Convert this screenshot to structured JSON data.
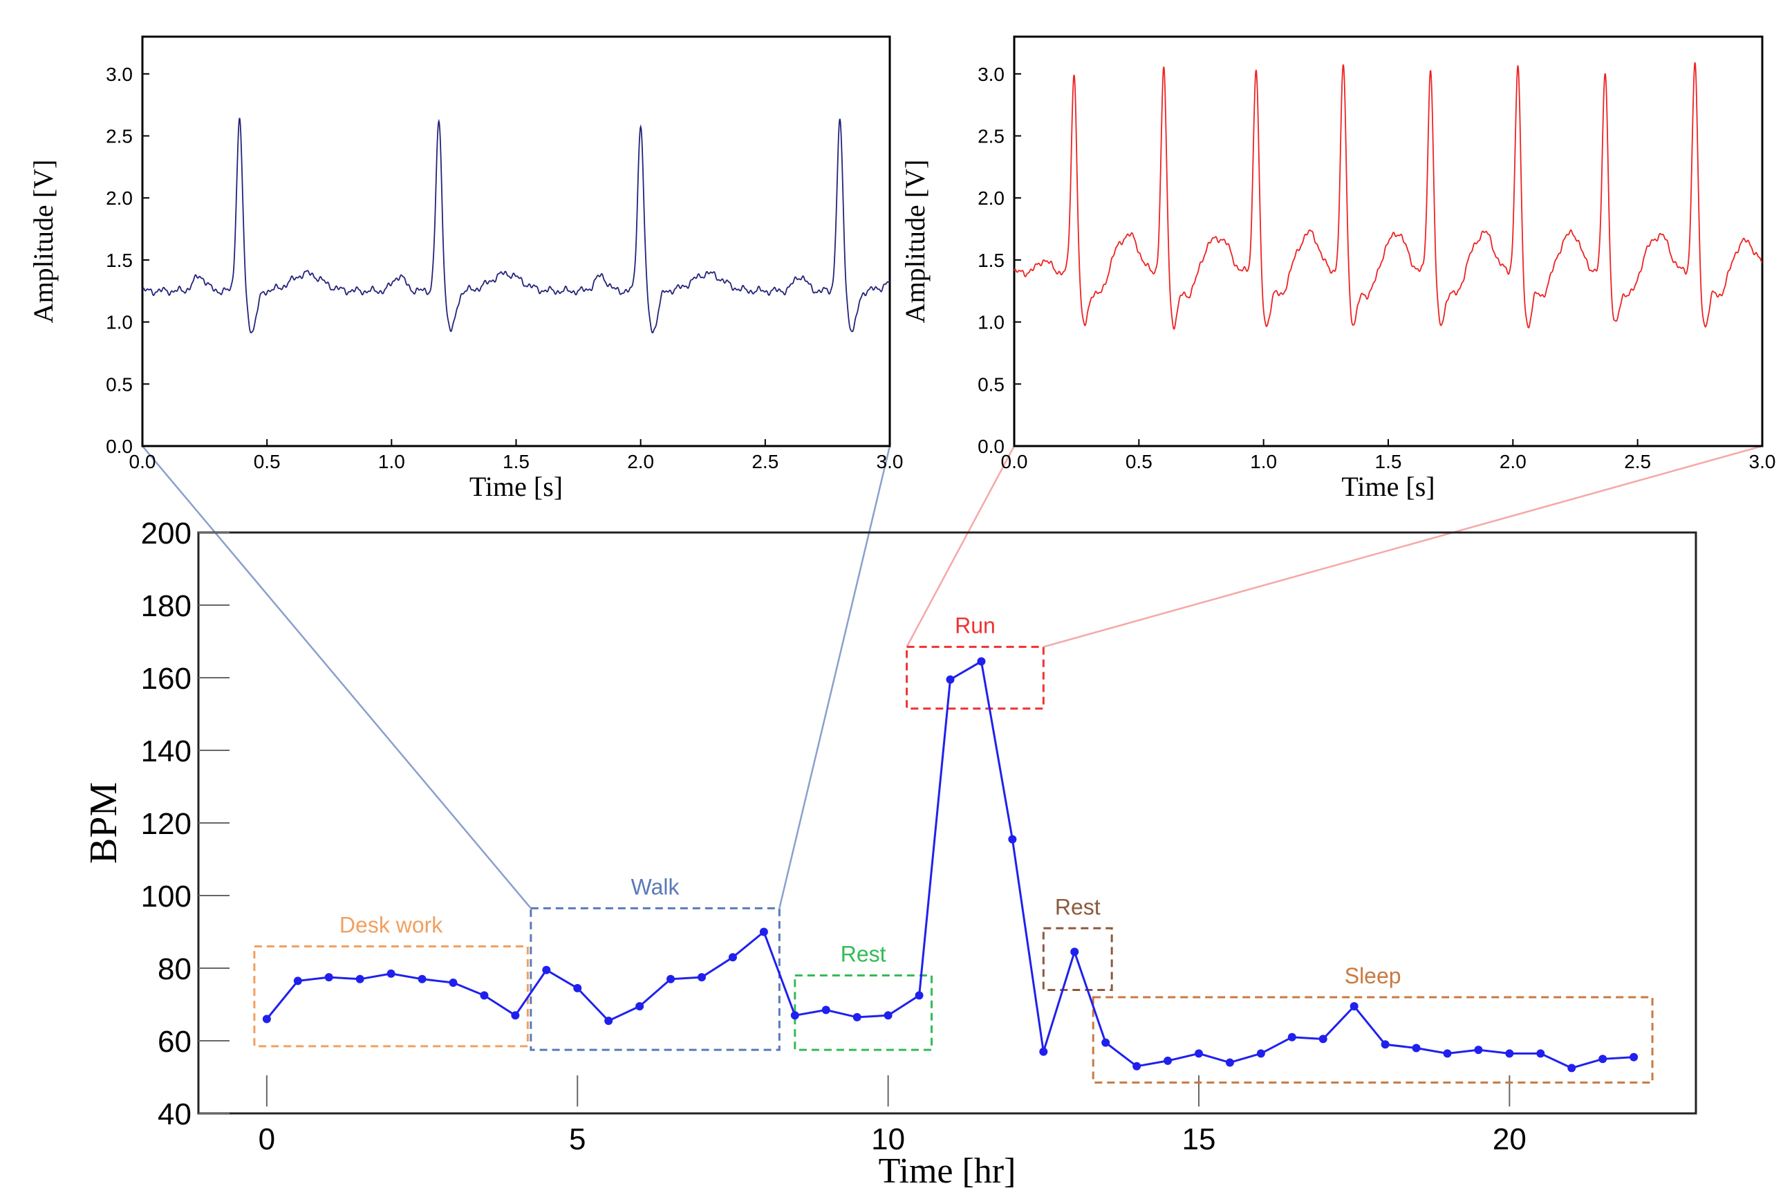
{
  "chart_data": [
    {
      "type": "line",
      "name": "ecg-walk",
      "xlabel": "Time [s]",
      "ylabel": "Amplitude [V]",
      "xlim": [
        0,
        3
      ],
      "ylim": [
        0,
        3.3
      ],
      "xticks": [
        "0.0",
        "0.5",
        "1.0",
        "1.5",
        "2.0",
        "2.5",
        "3.0"
      ],
      "yticks": [
        "0.0",
        "0.5",
        "1.0",
        "1.5",
        "2.0",
        "2.5",
        "3.0"
      ],
      "color": "#23237a",
      "baseline": 1.25,
      "peak_times": [
        0.39,
        1.19,
        2.0,
        2.8
      ],
      "peak_amplitudes": [
        2.63,
        2.61,
        2.59,
        2.61
      ],
      "trough_amplitude": 0.93
    },
    {
      "type": "line",
      "name": "ecg-run",
      "xlabel": "Time [s]",
      "ylabel": "Amplitude [V]",
      "xlim": [
        0,
        3
      ],
      "ylim": [
        0,
        3.3
      ],
      "xticks": [
        "0.0",
        "0.5",
        "1.0",
        "1.5",
        "2.0",
        "2.5",
        "3.0"
      ],
      "yticks": [
        "0.0",
        "0.5",
        "1.0",
        "1.5",
        "2.0",
        "2.5",
        "3.0"
      ],
      "color": "#ee2222",
      "baseline": 1.4,
      "peak_times": [
        0.24,
        0.6,
        0.97,
        1.32,
        1.67,
        2.02,
        2.37,
        2.73
      ],
      "peak_amplitudes": [
        3.02,
        3.04,
        3.06,
        3.09,
        3.05,
        3.06,
        3.05,
        3.1
      ],
      "trough_amplitude": 1.0
    },
    {
      "type": "line",
      "name": "bpm-24h",
      "xlabel": "Time [hr]",
      "ylabel": "BPM",
      "xlim": [
        -1.1,
        23
      ],
      "ylim": [
        40,
        200
      ],
      "xticks": [
        "0",
        "5",
        "10",
        "15",
        "20"
      ],
      "yticks": [
        "40",
        "60",
        "80",
        "100",
        "120",
        "140",
        "160",
        "180",
        "200"
      ],
      "color": "#2020ee",
      "x": [
        0,
        0.5,
        1,
        1.5,
        2,
        2.5,
        3,
        3.5,
        4,
        4.5,
        5,
        5.5,
        6,
        6.5,
        7,
        7.5,
        8,
        8.5,
        9,
        9.5,
        10,
        10.5,
        11,
        11.5,
        12,
        12.5,
        13,
        13.5,
        14,
        14.5,
        15,
        15.5,
        16,
        16.5,
        17,
        17.5,
        18,
        18.5,
        19,
        19.5,
        20,
        20.5,
        21,
        21.5,
        22
      ],
      "y": [
        66,
        76.5,
        77.5,
        77,
        78.5,
        77,
        76,
        72.5,
        67,
        79.5,
        74.5,
        65.5,
        69.5,
        77,
        77.5,
        83,
        90,
        67,
        68.5,
        66.5,
        67,
        72.5,
        159.5,
        164.5,
        115.5,
        57,
        84.5,
        59.5,
        53,
        54.5,
        56.5,
        54,
        56.5,
        61,
        60.5,
        69.5,
        59,
        58,
        56.5,
        57.5,
        56.5,
        56.5,
        52.5,
        55,
        55.5
      ],
      "annotations": [
        {
          "label": "Desk work",
          "color": "#f0a060",
          "x": [
            -0.2,
            4.2
          ],
          "y": [
            58.5,
            86
          ]
        },
        {
          "label": "Walk",
          "color": "#5a7ab8",
          "x": [
            4.25,
            8.25
          ],
          "y": [
            57.5,
            96.5
          ]
        },
        {
          "label": "Rest",
          "color": "#33bb55",
          "x": [
            8.5,
            10.7
          ],
          "y": [
            57.5,
            78
          ]
        },
        {
          "label": "Run",
          "color": "#ee3333",
          "x": [
            10.3,
            12.5
          ],
          "y": [
            151.5,
            168.5
          ]
        },
        {
          "label": "Rest",
          "color": "#8b5a3c",
          "x": [
            12.5,
            13.6
          ],
          "y": [
            74,
            91
          ]
        },
        {
          "label": "Sleep",
          "color": "#c87a40",
          "x": [
            13.3,
            22.3
          ],
          "y": [
            48.5,
            72
          ]
        }
      ]
    }
  ]
}
